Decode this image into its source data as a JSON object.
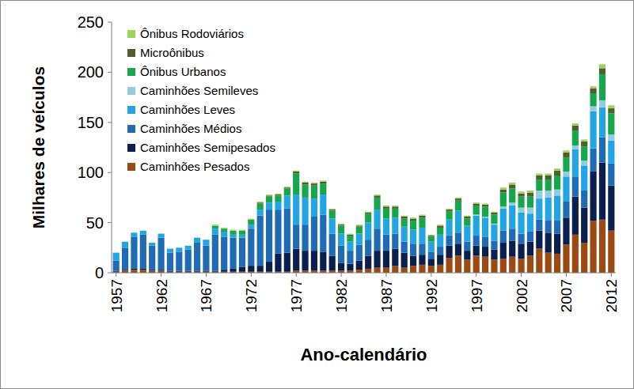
{
  "chart_data": {
    "type": "bar",
    "stacked": true,
    "grid": false,
    "legend": "top-left",
    "x_label": "Ano-calendário",
    "y_label": "Milhares de veículos",
    "ylim": [
      0,
      250
    ],
    "yticks": [
      0,
      50,
      100,
      150,
      200,
      250
    ],
    "categories": [
      "1957",
      null,
      null,
      null,
      null,
      "1962",
      null,
      null,
      null,
      null,
      "1967",
      null,
      null,
      null,
      null,
      "1972",
      null,
      null,
      null,
      null,
      "1977",
      null,
      null,
      null,
      null,
      "1982",
      null,
      null,
      null,
      null,
      "1987",
      null,
      null,
      null,
      null,
      "1992",
      null,
      null,
      null,
      null,
      "1997",
      null,
      null,
      null,
      null,
      "2002",
      null,
      null,
      null,
      null,
      "2007",
      null,
      null,
      null,
      null,
      "2012"
    ],
    "series": [
      {
        "name": "Caminhões Pesados",
        "color": "#9a4a12",
        "values": [
          1,
          2,
          3,
          3,
          2,
          2,
          1,
          1,
          1,
          1,
          1,
          1,
          1,
          1,
          1,
          1,
          1,
          1,
          1,
          1,
          2,
          2,
          2,
          2,
          2,
          2,
          2,
          3,
          4,
          5,
          5,
          7,
          5,
          7,
          8,
          7,
          8,
          15,
          17,
          13,
          17,
          16,
          13,
          14,
          16,
          14,
          17,
          24,
          20,
          19,
          28,
          38,
          30,
          52,
          53,
          42
        ]
      },
      {
        "name": "Caminhões Semipesados",
        "color": "#0b1f4f",
        "values": [
          1,
          1,
          1,
          1,
          1,
          1,
          1,
          1,
          1,
          1,
          1,
          1,
          2,
          3,
          5,
          6,
          6,
          10,
          18,
          19,
          22,
          20,
          20,
          19,
          15,
          8,
          7,
          9,
          13,
          17,
          17,
          17,
          15,
          10,
          10,
          7,
          10,
          12,
          12,
          9,
          10,
          10,
          10,
          16,
          16,
          15,
          14,
          18,
          20,
          20,
          27,
          38,
          35,
          49,
          57,
          45
        ]
      },
      {
        "name": "Caminhões Médios",
        "color": "#1f6cb4",
        "values": [
          10,
          22,
          32,
          34,
          24,
          32,
          18,
          19,
          21,
          28,
          25,
          36,
          33,
          31,
          29,
          37,
          50,
          52,
          44,
          44,
          24,
          26,
          34,
          37,
          22,
          17,
          13,
          16,
          16,
          22,
          16,
          15,
          11,
          12,
          11,
          7,
          8,
          10,
          11,
          9,
          10,
          10,
          9,
          12,
          12,
          10,
          10,
          11,
          12,
          13,
          16,
          20,
          17,
          23,
          25,
          22
        ]
      },
      {
        "name": "Caminhões Leves",
        "color": "#22a5e2",
        "values": [
          8,
          6,
          4,
          4,
          3,
          4,
          4,
          4,
          4,
          5,
          6,
          6,
          5,
          3,
          3,
          4,
          6,
          7,
          8,
          13,
          30,
          27,
          18,
          20,
          15,
          12,
          9,
          11,
          17,
          19,
          16,
          16,
          15,
          14,
          16,
          10,
          12,
          16,
          22,
          16,
          20,
          19,
          16,
          22,
          23,
          21,
          18,
          21,
          23,
          25,
          25,
          27,
          25,
          37,
          30,
          23
        ]
      },
      {
        "name": "Caminhões Semileves",
        "color": "#93cbe0",
        "values": [
          0,
          0,
          0,
          0,
          0,
          0,
          0,
          0,
          0,
          0,
          0,
          0,
          0,
          0,
          0,
          0,
          0,
          0,
          0,
          0,
          0,
          0,
          0,
          0,
          0,
          0,
          0,
          0,
          0,
          0,
          0,
          0,
          0,
          0,
          0,
          0,
          0,
          0,
          0,
          0,
          1,
          1,
          1,
          2,
          3,
          5,
          6,
          8,
          7,
          6,
          5,
          4,
          5,
          5,
          7,
          6
        ]
      },
      {
        "name": "Ônibus Urbanos",
        "color": "#16a64c",
        "values": [
          0,
          0,
          0,
          0,
          0,
          0,
          0,
          0,
          0,
          0,
          0,
          3,
          3,
          4,
          4,
          5,
          6,
          6,
          6,
          7,
          21,
          13,
          13,
          11,
          8,
          8,
          6,
          7,
          9,
          12,
          10,
          9,
          8,
          9,
          10,
          5,
          7,
          8,
          10,
          7,
          9,
          10,
          9,
          14,
          14,
          11,
          11,
          11,
          11,
          14,
          14,
          15,
          14,
          13,
          26,
          21
        ]
      },
      {
        "name": "Microônibus",
        "color": "#4f5f2b",
        "values": [
          0,
          0,
          0,
          0,
          0,
          0,
          0,
          0,
          0,
          0,
          0,
          0,
          0,
          0,
          0,
          0,
          1,
          1,
          1,
          1,
          2,
          2,
          2,
          2,
          1,
          1,
          1,
          1,
          1,
          2,
          2,
          2,
          2,
          2,
          2,
          1,
          2,
          2,
          2,
          2,
          2,
          2,
          2,
          3,
          4,
          3,
          4,
          4,
          4,
          5,
          5,
          5,
          5,
          5,
          6,
          5
        ]
      },
      {
        "name": "Ônibus Rodoviários",
        "color": "#9ed35c",
        "values": [
          0,
          0,
          0,
          0,
          0,
          0,
          0,
          0,
          0,
          0,
          0,
          1,
          1,
          1,
          1,
          1,
          1,
          1,
          1,
          1,
          1,
          1,
          1,
          1,
          1,
          1,
          1,
          1,
          1,
          1,
          1,
          1,
          1,
          1,
          1,
          1,
          1,
          1,
          1,
          1,
          1,
          1,
          1,
          2,
          2,
          2,
          2,
          2,
          2,
          2,
          2,
          2,
          2,
          2,
          4,
          3
        ]
      }
    ]
  }
}
